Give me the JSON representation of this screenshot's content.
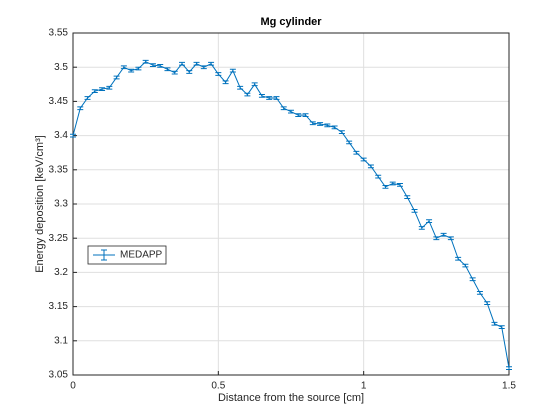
{
  "chart_data": {
    "type": "errorbar",
    "title": "Mg cylinder",
    "xlabel": "Distance from the source [cm]",
    "ylabel": "Energy deposition [keV/cm³]",
    "x": [
      0,
      0.025,
      0.05,
      0.075,
      0.1,
      0.125,
      0.15,
      0.175,
      0.2,
      0.225,
      0.25,
      0.275,
      0.3,
      0.325,
      0.35,
      0.375,
      0.4,
      0.425,
      0.45,
      0.475,
      0.5,
      0.525,
      0.55,
      0.575,
      0.6,
      0.625,
      0.65,
      0.675,
      0.7,
      0.725,
      0.75,
      0.775,
      0.8,
      0.825,
      0.85,
      0.875,
      0.9,
      0.925,
      0.95,
      0.975,
      1.0,
      1.025,
      1.05,
      1.075,
      1.1,
      1.125,
      1.15,
      1.175,
      1.2,
      1.225,
      1.25,
      1.275,
      1.3,
      1.325,
      1.35,
      1.375,
      1.4,
      1.425,
      1.45,
      1.475,
      1.5
    ],
    "series": [
      {
        "name": "MEDAPP",
        "color": "#0072bd",
        "values": [
          3.4,
          3.44,
          3.455,
          3.465,
          3.468,
          3.47,
          3.485,
          3.5,
          3.495,
          3.498,
          3.508,
          3.503,
          3.502,
          3.497,
          3.492,
          3.505,
          3.493,
          3.505,
          3.5,
          3.505,
          3.49,
          3.478,
          3.495,
          3.47,
          3.46,
          3.475,
          3.458,
          3.455,
          3.455,
          3.44,
          3.435,
          3.43,
          3.43,
          3.418,
          3.417,
          3.415,
          3.412,
          3.405,
          3.39,
          3.375,
          3.365,
          3.355,
          3.34,
          3.325,
          3.33,
          3.328,
          3.31,
          3.29,
          3.265,
          3.275,
          3.25,
          3.255,
          3.25,
          3.22,
          3.21,
          3.19,
          3.17,
          3.155,
          3.125,
          3.12,
          3.06
        ],
        "errors": [
          0.002,
          0.002,
          0.002,
          0.002,
          0.002,
          0.002,
          0.002,
          0.002,
          0.002,
          0.002,
          0.002,
          0.002,
          0.002,
          0.002,
          0.002,
          0.002,
          0.002,
          0.002,
          0.002,
          0.002,
          0.002,
          0.002,
          0.002,
          0.002,
          0.002,
          0.002,
          0.002,
          0.002,
          0.002,
          0.002,
          0.002,
          0.002,
          0.002,
          0.002,
          0.002,
          0.002,
          0.002,
          0.002,
          0.002,
          0.002,
          0.002,
          0.002,
          0.002,
          0.002,
          0.002,
          0.002,
          0.002,
          0.002,
          0.002,
          0.002,
          0.002,
          0.002,
          0.002,
          0.002,
          0.002,
          0.002,
          0.002,
          0.002,
          0.002,
          0.002,
          0.002
        ]
      }
    ],
    "xlim": [
      0,
      1.5
    ],
    "xticks": [
      0,
      0.5,
      1,
      1.5
    ],
    "ylim": [
      3.05,
      3.55
    ],
    "yticks": [
      3.05,
      3.1,
      3.15,
      3.2,
      3.25,
      3.3,
      3.35,
      3.4,
      3.45,
      3.5,
      3.55
    ],
    "grid": true,
    "legend": "west"
  }
}
